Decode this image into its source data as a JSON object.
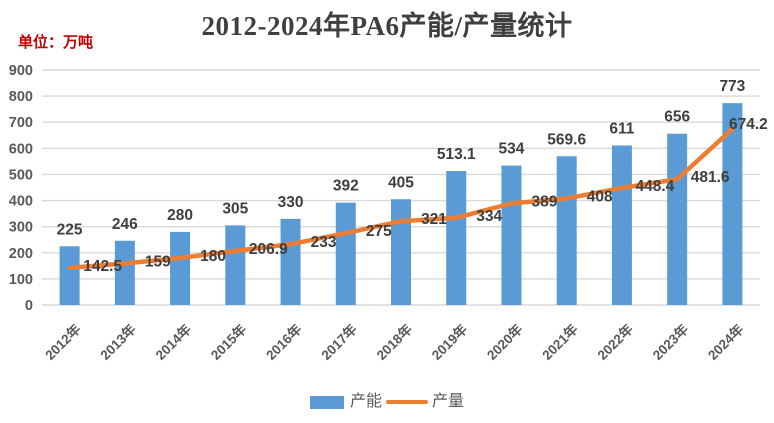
{
  "title": "2012-2024年PA6产能/产量统计",
  "unit_label": "单位：万吨",
  "legend": {
    "capacity_label": "产能",
    "production_label": "产量"
  },
  "colors": {
    "bar": "#5b9bd5",
    "line": "#ed7d31",
    "title_text": "#3f3f3f",
    "unit_text": "#c00000",
    "axis_text": "#595959",
    "data_label_text": "#3f3f3f",
    "gridline": "#d9d9d9"
  },
  "chart_data": {
    "type": "bar",
    "subtype": "bar-line-combo",
    "title": "2012-2024年PA6产能/产量统计",
    "xlabel": "",
    "ylabel": "单位：万吨",
    "categories": [
      "2012年",
      "2013年",
      "2014年",
      "2015年",
      "2016年",
      "2017年",
      "2018年",
      "2019年",
      "2020年",
      "2021年",
      "2022年",
      "2023年",
      "2024年"
    ],
    "series": [
      {
        "name": "产能",
        "type": "bar",
        "color": "#5b9bd5",
        "values": [
          225,
          246,
          280,
          305,
          330,
          392,
          405,
          513.1,
          534,
          569.6,
          611,
          656,
          773
        ]
      },
      {
        "name": "产量",
        "type": "line",
        "color": "#ed7d31",
        "values": [
          142.5,
          159,
          180,
          206.9,
          233,
          275,
          321,
          334,
          389,
          408,
          448.4,
          481.6,
          674.2
        ]
      }
    ],
    "ylim": [
      0,
      900
    ],
    "ytick_step": 100,
    "yticks": [
      0,
      100,
      200,
      300,
      400,
      500,
      600,
      700,
      800,
      900
    ],
    "grid": true,
    "data_labels": true,
    "legend_position": "bottom"
  }
}
